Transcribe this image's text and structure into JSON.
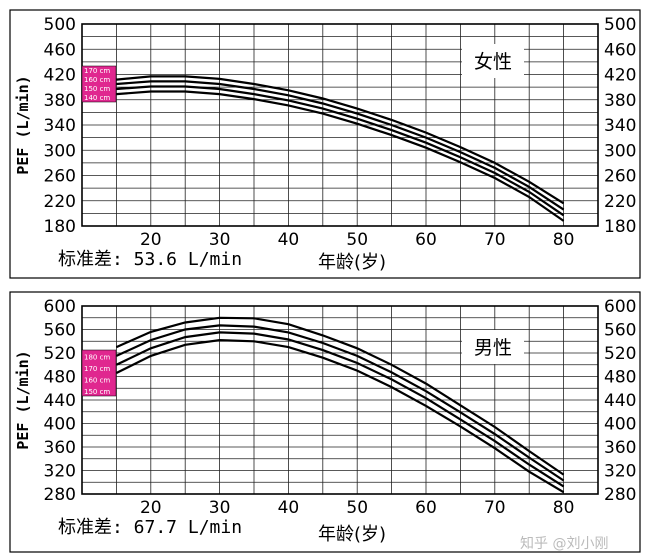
{
  "chart_data": [
    {
      "type": "line",
      "sex_label": "女性",
      "ylabel": "PEF (L/min)",
      "xlabel": "年龄(岁)",
      "stat_text": "标准差: 53.6 L/min",
      "xticks": [
        "20",
        "30",
        "40",
        "50",
        "60",
        "70",
        "80"
      ],
      "yticks": [
        "500",
        "460",
        "420",
        "380",
        "340",
        "300",
        "260",
        "220",
        "180"
      ],
      "xlim": [
        10,
        85
      ],
      "ylim": [
        180,
        500
      ],
      "legend": [
        "170 cm",
        "160 cm",
        "150 cm",
        "140 cm"
      ],
      "legend_color": "#e0278f",
      "series": [
        {
          "name": "170 cm",
          "x": [
            15,
            20,
            25,
            30,
            35,
            40,
            45,
            50,
            55,
            60,
            65,
            70,
            75,
            80
          ],
          "values": [
            412,
            417,
            417,
            413,
            405,
            395,
            382,
            366,
            348,
            328,
            305,
            280,
            250,
            216
          ]
        },
        {
          "name": "160 cm",
          "x": [
            15,
            20,
            25,
            30,
            35,
            40,
            45,
            50,
            55,
            60,
            65,
            70,
            75,
            80
          ],
          "values": [
            405,
            409,
            409,
            405,
            397,
            387,
            374,
            358,
            340,
            320,
            297,
            272,
            242,
            206
          ]
        },
        {
          "name": "150 cm",
          "x": [
            15,
            20,
            25,
            30,
            35,
            40,
            45,
            50,
            55,
            60,
            65,
            70,
            75,
            80
          ],
          "values": [
            397,
            401,
            401,
            397,
            389,
            379,
            366,
            350,
            332,
            312,
            289,
            264,
            234,
            197
          ]
        },
        {
          "name": "140 cm",
          "x": [
            15,
            20,
            25,
            30,
            35,
            40,
            45,
            50,
            55,
            60,
            65,
            70,
            75,
            80
          ],
          "values": [
            389,
            393,
            393,
            389,
            381,
            371,
            358,
            342,
            324,
            304,
            281,
            256,
            226,
            188
          ]
        }
      ]
    },
    {
      "type": "line",
      "sex_label": "男性",
      "ylabel": "PEF (L/min)",
      "xlabel": "年龄(岁)",
      "stat_text": "标准差: 67.7 L/min",
      "xticks": [
        "20",
        "30",
        "40",
        "50",
        "60",
        "70",
        "80"
      ],
      "yticks": [
        "600",
        "560",
        "520",
        "480",
        "440",
        "400",
        "360",
        "320",
        "280"
      ],
      "xlim": [
        10,
        85
      ],
      "ylim": [
        280,
        600
      ],
      "legend": [
        "180 cm",
        "170 cm",
        "160 cm",
        "150 cm"
      ],
      "legend_color": "#e0278f",
      "series": [
        {
          "name": "180 cm",
          "x": [
            15,
            20,
            25,
            30,
            35,
            40,
            45,
            50,
            55,
            60,
            65,
            70,
            75,
            80
          ],
          "values": [
            530,
            556,
            572,
            580,
            579,
            569,
            550,
            528,
            500,
            468,
            431,
            394,
            353,
            313
          ]
        },
        {
          "name": "170 cm",
          "x": [
            15,
            20,
            25,
            30,
            35,
            40,
            45,
            50,
            55,
            60,
            65,
            70,
            75,
            80
          ],
          "values": [
            515,
            542,
            560,
            567,
            565,
            555,
            537,
            515,
            487,
            455,
            419,
            382,
            342,
            303
          ]
        },
        {
          "name": "160 cm",
          "x": [
            15,
            20,
            25,
            30,
            35,
            40,
            45,
            50,
            55,
            60,
            65,
            70,
            75,
            80
          ],
          "values": [
            500,
            528,
            547,
            555,
            553,
            543,
            525,
            503,
            475,
            443,
            407,
            370,
            330,
            293
          ]
        },
        {
          "name": "150 cm",
          "x": [
            15,
            20,
            25,
            30,
            35,
            40,
            45,
            50,
            55,
            60,
            65,
            70,
            75,
            80
          ],
          "values": [
            486,
            515,
            534,
            542,
            540,
            530,
            512,
            490,
            462,
            430,
            395,
            358,
            318,
            283
          ]
        }
      ]
    }
  ],
  "watermark": "知乎 @刘小刚"
}
